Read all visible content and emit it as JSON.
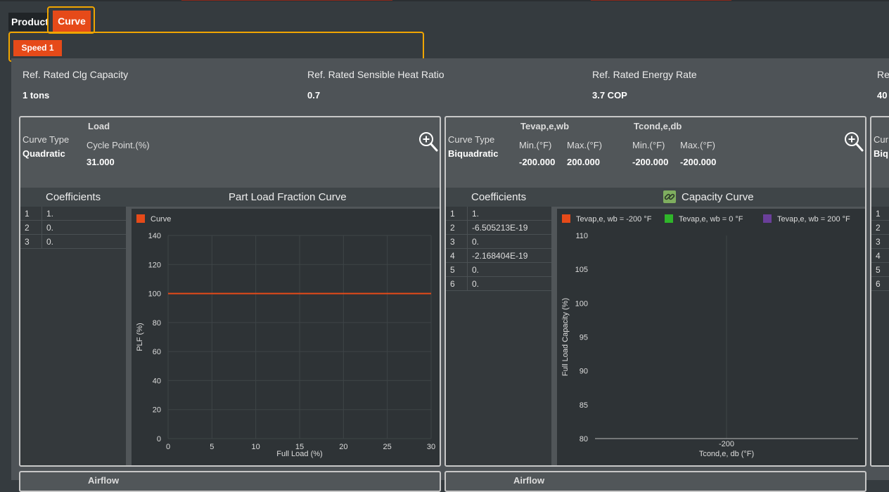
{
  "tabs": [
    {
      "label": "Product"
    },
    {
      "label": "Curve"
    }
  ],
  "speed_button": "Speed 1",
  "properties": [
    {
      "label": "Ref. Rated Clg Capacity",
      "value": "1 tons"
    },
    {
      "label": "Ref. Rated Sensible Heat Ratio",
      "value": "0.7"
    },
    {
      "label": "Ref. Rated Energy Rate",
      "value": "3.7 COP"
    },
    {
      "label": "Re",
      "value": "40"
    }
  ],
  "load_card": {
    "curve_type_label": "Curve Type",
    "curve_type_value": "Quadratic",
    "section_label": "Load",
    "cycle_point_label": "Cycle Point.(%)",
    "cycle_point_value": "31.000",
    "coefficients_title": "Coefficients",
    "coefficients": [
      {
        "idx": "1",
        "val": "1."
      },
      {
        "idx": "2",
        "val": "0."
      },
      {
        "idx": "3",
        "val": "0."
      }
    ],
    "zoom_icon": "zoom-in-icon"
  },
  "capacity_card": {
    "curve_type_label": "Curve Type",
    "curve_type_value": "Biquadratic",
    "tevap_label": "Tevap,e,wb",
    "tcond_label": "Tcond,e,db",
    "min_label": "Min.(°F)",
    "max_label": "Max.(°F)",
    "tevap_min": "-200.000",
    "tevap_max": "200.000",
    "tcond_min": "-200.000",
    "tcond_max": "-200.000",
    "coefficients_title": "Coefficients",
    "coefficients": [
      {
        "idx": "1",
        "val": "1."
      },
      {
        "idx": "2",
        "val": "-6.505213E-19"
      },
      {
        "idx": "3",
        "val": "0."
      },
      {
        "idx": "4",
        "val": "-2.168404E-19"
      },
      {
        "idx": "5",
        "val": "0."
      },
      {
        "idx": "6",
        "val": "0."
      }
    ],
    "link_icon": "link-icon",
    "zoom_icon": "zoom-in-icon"
  },
  "right_card_partial": {
    "curve_type_label": "Cur",
    "curve_type_value": "Biq",
    "coefficients": [
      "1",
      "2",
      "3",
      "4",
      "5",
      "6"
    ]
  },
  "bottom_labels": [
    "Airflow",
    "Airflow"
  ],
  "chart_data": [
    {
      "type": "line",
      "title": "Part Load Fraction Curve",
      "xlabel": "Full Load (%)",
      "ylabel": "PLF (%)",
      "xlim": [
        0,
        30
      ],
      "ylim": [
        0,
        140
      ],
      "xticks": [
        0,
        5,
        10,
        15,
        20,
        25,
        30
      ],
      "yticks": [
        0,
        20,
        40,
        60,
        80,
        100,
        120,
        140
      ],
      "grid": true,
      "legend_placement": "top-left",
      "series": [
        {
          "name": "Curve",
          "color": "#e64a19",
          "x": [
            0,
            30
          ],
          "y": [
            100,
            100
          ]
        }
      ]
    },
    {
      "type": "line",
      "title": "Capacity Curve",
      "xlabel": "Tcond,e, db (°F)",
      "ylabel": "Full Load Capacity (%)",
      "ylim": [
        80,
        110
      ],
      "xticks": [
        -200
      ],
      "yticks": [
        80,
        85,
        90,
        95,
        100,
        105,
        110
      ],
      "grid": true,
      "legend_placement": "top",
      "series": [
        {
          "name": "Tevap,e, wb  =  -200 °F",
          "color": "#e64a19",
          "x": [],
          "y": []
        },
        {
          "name": "Tevap,e, wb  =  0 °F",
          "color": "#2fb52a",
          "x": [],
          "y": []
        },
        {
          "name": "Tevap,e, wb  =  200 °F",
          "color": "#6a3f9a",
          "x": [],
          "y": []
        }
      ]
    }
  ]
}
